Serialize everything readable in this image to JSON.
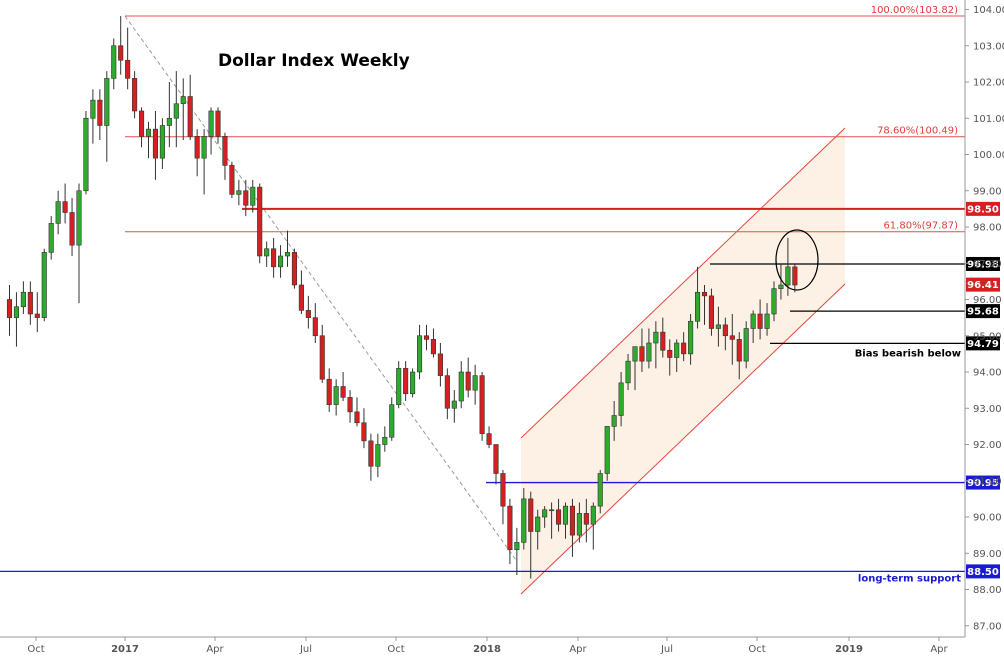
{
  "chart_data": {
    "type": "candlestick",
    "title": "Dollar Index Weekly",
    "ylim": [
      86.5,
      104.2
    ],
    "y_ticks": [
      "104.00",
      "103.00",
      "102.00",
      "101.00",
      "100.00",
      "99.00",
      "98.00",
      "97.00",
      "96.00",
      "95.00",
      "94.00",
      "93.00",
      "92.00",
      "91.00",
      "90.00",
      "89.00",
      "88.00",
      "87.00"
    ],
    "x_ticks": [
      "Oct",
      "2017",
      "Apr",
      "Jul",
      "Oct",
      "2018",
      "Apr",
      "Jul",
      "Oct",
      "2019",
      "Apr"
    ],
    "candles": [
      [
        96.0,
        96.4,
        95.0,
        95.5
      ],
      [
        95.5,
        96.2,
        94.7,
        95.8
      ],
      [
        95.8,
        96.5,
        95.6,
        96.2
      ],
      [
        96.2,
        96.5,
        95.3,
        95.6
      ],
      [
        95.6,
        96.2,
        95.1,
        95.5
      ],
      [
        95.5,
        97.4,
        95.4,
        97.3
      ],
      [
        97.3,
        98.3,
        97.1,
        98.1
      ],
      [
        98.1,
        99.0,
        97.8,
        98.7
      ],
      [
        98.7,
        99.2,
        98.1,
        98.4
      ],
      [
        98.4,
        98.8,
        97.2,
        97.5
      ],
      [
        97.5,
        99.2,
        95.9,
        99.0
      ],
      [
        99.0,
        101.2,
        98.9,
        101.0
      ],
      [
        101.0,
        101.8,
        100.3,
        101.5
      ],
      [
        101.5,
        101.8,
        100.4,
        100.8
      ],
      [
        100.8,
        102.3,
        99.8,
        102.1
      ],
      [
        102.1,
        103.2,
        101.8,
        103.0
      ],
      [
        103.0,
        103.82,
        102.2,
        102.6
      ],
      [
        102.6,
        103.5,
        101.8,
        102.1
      ],
      [
        102.1,
        102.3,
        101.0,
        101.2
      ],
      [
        101.2,
        101.3,
        100.2,
        100.5
      ],
      [
        100.5,
        100.9,
        99.9,
        100.7
      ],
      [
        100.7,
        101.2,
        99.3,
        99.9
      ],
      [
        99.9,
        101.0,
        99.6,
        100.8
      ],
      [
        100.8,
        102.0,
        100.2,
        101.0
      ],
      [
        101.0,
        102.3,
        100.2,
        101.4
      ],
      [
        101.4,
        102.1,
        100.4,
        101.6
      ],
      [
        101.6,
        102.2,
        100.4,
        100.5
      ],
      [
        100.5,
        100.7,
        99.4,
        99.9
      ],
      [
        99.9,
        100.7,
        98.9,
        100.5
      ],
      [
        100.5,
        101.3,
        100.0,
        101.2
      ],
      [
        101.2,
        101.3,
        100.3,
        100.5
      ],
      [
        100.5,
        100.6,
        99.3,
        99.7
      ],
      [
        99.7,
        99.8,
        98.8,
        98.9
      ],
      [
        98.9,
        99.3,
        98.6,
        99.0
      ],
      [
        99.0,
        99.3,
        98.3,
        98.6
      ],
      [
        98.6,
        99.3,
        98.4,
        99.1
      ],
      [
        99.1,
        99.2,
        97.0,
        97.2
      ],
      [
        97.2,
        97.6,
        96.9,
        97.4
      ],
      [
        97.4,
        97.7,
        96.6,
        96.9
      ],
      [
        96.9,
        97.5,
        96.6,
        97.2
      ],
      [
        97.2,
        97.9,
        96.9,
        97.3
      ],
      [
        97.3,
        97.4,
        96.3,
        96.4
      ],
      [
        96.4,
        96.8,
        95.6,
        95.7
      ],
      [
        95.7,
        96.1,
        95.2,
        95.5
      ],
      [
        95.5,
        95.9,
        94.8,
        95.0
      ],
      [
        95.0,
        95.3,
        93.7,
        93.8
      ],
      [
        93.8,
        94.1,
        92.9,
        93.1
      ],
      [
        93.1,
        93.8,
        92.8,
        93.6
      ],
      [
        93.6,
        94.0,
        93.2,
        93.3
      ],
      [
        93.3,
        93.5,
        92.6,
        92.9
      ],
      [
        92.9,
        93.3,
        92.5,
        92.6
      ],
      [
        92.6,
        93.0,
        91.9,
        92.1
      ],
      [
        92.1,
        92.3,
        91.0,
        91.4
      ],
      [
        91.4,
        92.3,
        91.1,
        92.0
      ],
      [
        92.0,
        92.5,
        91.8,
        92.2
      ],
      [
        92.2,
        93.3,
        92.1,
        93.1
      ],
      [
        93.1,
        94.3,
        93.0,
        94.1
      ],
      [
        94.1,
        94.3,
        93.2,
        93.4
      ],
      [
        93.4,
        94.1,
        93.3,
        94.0
      ],
      [
        94.0,
        95.3,
        93.8,
        95.0
      ],
      [
        95.0,
        95.3,
        94.6,
        94.9
      ],
      [
        94.9,
        95.2,
        94.4,
        94.5
      ],
      [
        94.5,
        94.8,
        93.6,
        93.9
      ],
      [
        93.9,
        94.1,
        92.7,
        93.0
      ],
      [
        93.0,
        93.5,
        92.6,
        93.2
      ],
      [
        93.2,
        94.3,
        93.0,
        94.0
      ],
      [
        94.0,
        94.4,
        93.3,
        93.5
      ],
      [
        93.5,
        94.2,
        93.1,
        93.9
      ],
      [
        93.9,
        94.0,
        92.1,
        92.3
      ],
      [
        92.3,
        92.5,
        91.9,
        92.0
      ],
      [
        92.0,
        92.0,
        90.9,
        91.2
      ],
      [
        91.2,
        91.3,
        89.8,
        90.3
      ],
      [
        90.3,
        90.5,
        88.7,
        89.1
      ],
      [
        89.1,
        89.7,
        88.4,
        89.3
      ],
      [
        89.3,
        90.8,
        89.1,
        90.5
      ],
      [
        90.5,
        90.7,
        88.3,
        89.6
      ],
      [
        89.6,
        90.2,
        89.1,
        90.0
      ],
      [
        90.0,
        90.3,
        89.7,
        90.2
      ],
      [
        90.2,
        90.4,
        89.4,
        90.2
      ],
      [
        90.2,
        90.5,
        89.6,
        89.8
      ],
      [
        89.8,
        90.4,
        89.4,
        90.3
      ],
      [
        90.3,
        90.5,
        88.9,
        89.5
      ],
      [
        89.5,
        90.4,
        89.3,
        90.1
      ],
      [
        90.1,
        90.5,
        89.3,
        89.8
      ],
      [
        89.8,
        90.4,
        89.1,
        90.3
      ],
      [
        90.3,
        91.3,
        90.1,
        91.2
      ],
      [
        91.2,
        92.5,
        91.0,
        92.5
      ],
      [
        92.5,
        93.2,
        92.1,
        92.8
      ],
      [
        92.8,
        94.0,
        92.5,
        93.7
      ],
      [
        93.7,
        94.5,
        93.5,
        94.3
      ],
      [
        94.3,
        94.6,
        93.5,
        94.7
      ],
      [
        94.7,
        95.2,
        94.0,
        94.3
      ],
      [
        94.3,
        95.2,
        94.1,
        94.8
      ],
      [
        94.8,
        95.4,
        94.1,
        95.1
      ],
      [
        95.1,
        95.5,
        94.4,
        94.6
      ],
      [
        94.6,
        94.9,
        93.9,
        94.4
      ],
      [
        94.4,
        94.9,
        94.0,
        94.8
      ],
      [
        94.8,
        95.1,
        94.3,
        94.5
      ],
      [
        94.5,
        95.6,
        94.2,
        95.4
      ],
      [
        95.4,
        96.9,
        95.2,
        96.2
      ],
      [
        96.2,
        96.4,
        95.3,
        96.1
      ],
      [
        96.1,
        96.3,
        95.0,
        95.2
      ],
      [
        95.2,
        95.8,
        94.7,
        95.3
      ],
      [
        95.3,
        95.5,
        94.6,
        95.0
      ],
      [
        95.0,
        95.6,
        94.2,
        94.9
      ],
      [
        94.9,
        95.1,
        93.8,
        94.3
      ],
      [
        94.3,
        95.4,
        94.1,
        95.2
      ],
      [
        95.2,
        95.7,
        94.8,
        95.6
      ],
      [
        95.6,
        96.0,
        94.9,
        95.2
      ],
      [
        95.2,
        95.9,
        95.0,
        95.6
      ],
      [
        95.6,
        96.5,
        95.4,
        96.3
      ],
      [
        96.3,
        97.0,
        96.0,
        96.4
      ],
      [
        96.4,
        97.7,
        96.1,
        96.9
      ],
      [
        96.9,
        96.98,
        96.2,
        96.4
      ]
    ],
    "fibonacci": [
      {
        "value": 103.82,
        "label": "100.00%(103.82)"
      },
      {
        "value": 100.49,
        "label": "78.60%(100.49)"
      },
      {
        "value": 97.87,
        "label": "61.80%(97.87)"
      }
    ],
    "levels": [
      {
        "value": 98.5,
        "label": "98.50",
        "color": "#d42020"
      },
      {
        "value": 96.98,
        "label": "96.98",
        "color": "#000000"
      },
      {
        "value": 96.41,
        "label": "96.41",
        "color": "#d42020"
      },
      {
        "value": 95.68,
        "label": "95.68",
        "color": "#000000"
      },
      {
        "value": 94.79,
        "label": "94.79",
        "color": "#000000",
        "note": "Bias bearish below"
      },
      {
        "value": 90.95,
        "label": "90.95",
        "color": "#1a1ad4"
      },
      {
        "value": 88.5,
        "label": "88.50",
        "color": "#1a1ad4",
        "note": "long-term support"
      }
    ],
    "colors": {
      "up": "#2eaa2e",
      "down": "#d42020",
      "fib": "#e05050",
      "channel": "#e8463c",
      "channel_fill": "#fdf1e6"
    }
  }
}
